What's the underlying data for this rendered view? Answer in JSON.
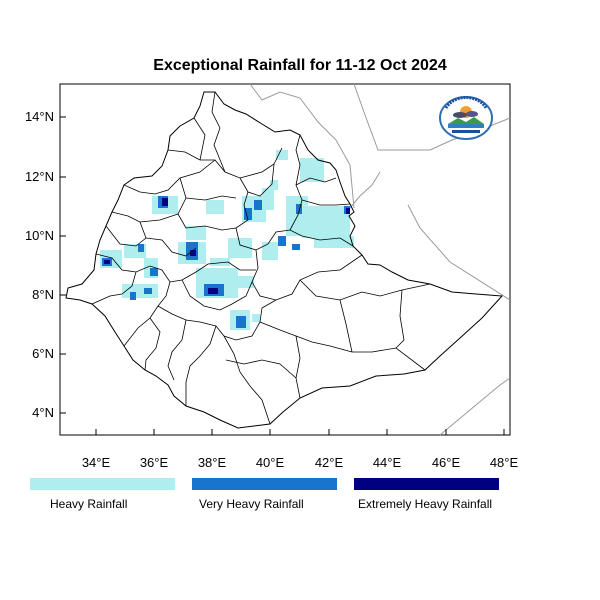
{
  "title": "Exceptional Rainfall for 11-12 Oct 2024",
  "y_ticks": [
    "14°N",
    "12°N",
    "10°N",
    "8°N",
    "6°N",
    "4°N"
  ],
  "x_ticks": [
    "34°E",
    "36°E",
    "38°E",
    "40°E",
    "42°E",
    "44°E",
    "46°E",
    "48°E"
  ],
  "legend": [
    {
      "label": "Heavy Rainfall",
      "color": "#aeeeee"
    },
    {
      "label": "Very Heavy Rainfall",
      "color": "#1874cd"
    },
    {
      "label": "Extremely Heavy Rainfall",
      "color": "#000080"
    }
  ],
  "colors": {
    "border": "#000000",
    "neighbor_border": "#9a9a9a",
    "heavy": "#aeeeee",
    "very_heavy": "#1874cd",
    "extreme": "#000080"
  },
  "logo": {
    "text": "ETHIOPIAN METEOROLOGY INSTITUTE",
    "icon": "agency-logo-icon"
  }
}
